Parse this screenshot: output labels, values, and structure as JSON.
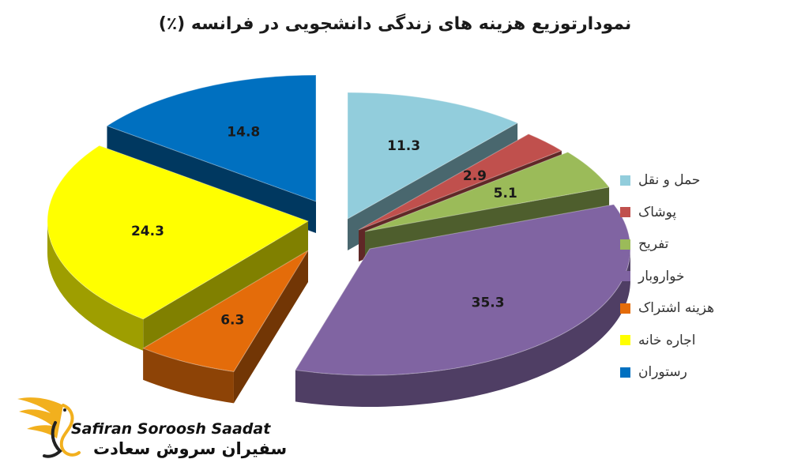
{
  "chart_data": {
    "type": "pie",
    "title": "نمودارتوزیع هزینه های زندگی دانشجویی در فرانسه (٪)",
    "legend_position": "right",
    "slices": [
      {
        "label": "حمل و نقل",
        "value": 11.3,
        "value_label": "11.3",
        "color": "#92CDDC"
      },
      {
        "label": "پوشاک",
        "value": 2.9,
        "value_label": "2.9",
        "color": "#C0504D"
      },
      {
        "label": "تفریح",
        "value": 5.1,
        "value_label": "5.1",
        "color": "#9BBB59"
      },
      {
        "label": "خواروبار",
        "value": 35.3,
        "value_label": "35.3",
        "color": "#8064A2"
      },
      {
        "label": "هزینه اشتراک",
        "value": 6.3,
        "value_label": "6.3",
        "color": "#E46C0A"
      },
      {
        "label": "اجاره خانه",
        "value": 24.3,
        "value_label": "24.3",
        "color": "#FFFF00"
      },
      {
        "label": "رستوران",
        "value": 14.8,
        "value_label": "14.8",
        "color": "#0070C0"
      }
    ]
  },
  "logo": {
    "text_en": "Safiran Soroosh Saadat",
    "text_fa": "سفیران سروش سعادت"
  }
}
